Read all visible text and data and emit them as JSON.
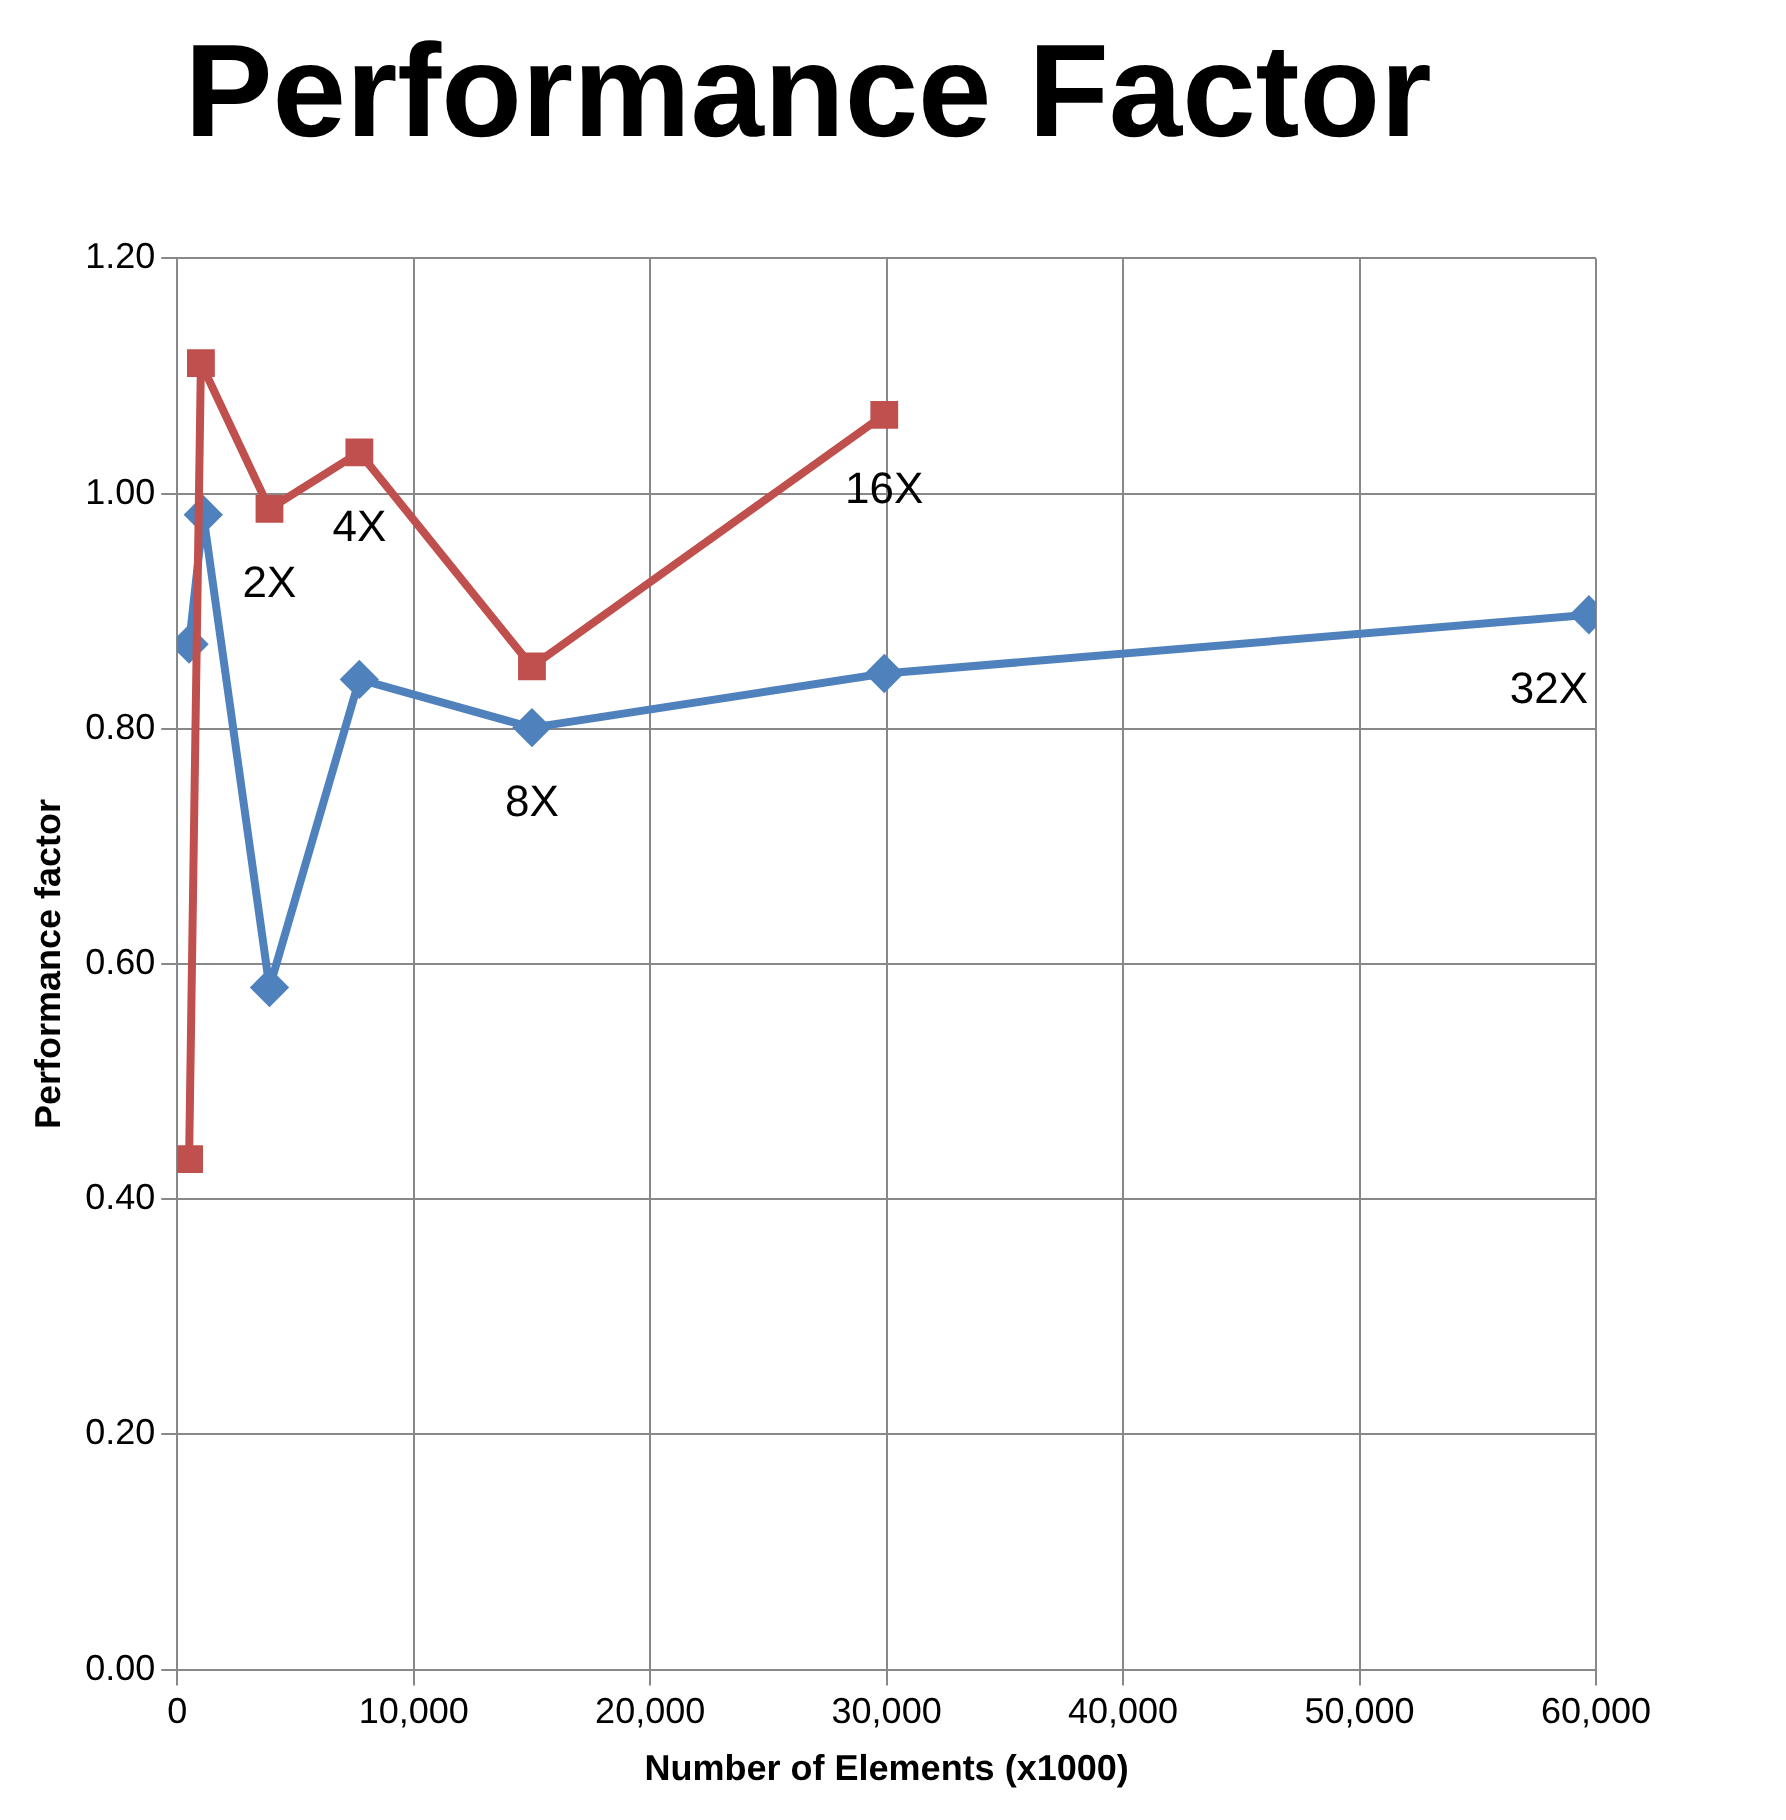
{
  "chart_data": {
    "type": "line",
    "title": "Performance Factor",
    "xlabel": "Number of Elements (x1000)",
    "ylabel": "Performance factor",
    "series": [
      {
        "color": "#c0504d",
        "marker": "square",
        "x": [
          500,
          1000,
          3900,
          7700,
          15000,
          29900
        ],
        "values": [
          0.434,
          1.111,
          0.987,
          1.035,
          0.853,
          1.067
        ]
      },
      {
        "color": "#4f81bd",
        "marker": "diamond",
        "x": [
          500,
          1100,
          3900,
          7700,
          15000,
          29900,
          59700
        ],
        "values": [
          0.872,
          0.982,
          0.58,
          0.842,
          0.801,
          0.847,
          0.897
        ]
      }
    ],
    "xlim": [
      0,
      60000
    ],
    "ylim": [
      0,
      1.2
    ],
    "xticks": [
      0,
      {
        "value": 10000,
        "label": "10,000"
      },
      {
        "value": 20000,
        "label": "20,000"
      },
      {
        "value": 30000,
        "label": "30,000"
      },
      {
        "value": 40000,
        "label": "40,000"
      },
      {
        "value": 50000,
        "label": "50,000"
      },
      {
        "value": 60000,
        "label": "60,000"
      }
    ],
    "yticks": [
      {
        "value": 0,
        "label": "0.00"
      },
      {
        "value": 0.2,
        "label": "0.20"
      },
      {
        "value": 0.4,
        "label": "0.40"
      },
      {
        "value": 0.6,
        "label": "0.60"
      },
      {
        "value": 0.8,
        "label": "0.80"
      },
      {
        "value": 1,
        "label": "1.00"
      },
      {
        "value": 1.2,
        "label": "1.20"
      }
    ],
    "grid": true,
    "line_style": "solid",
    "annotations": [
      {
        "text": "2X",
        "x": 3900,
        "y": 0.987
      },
      {
        "text": "4X",
        "x": 7700,
        "y": 1.035
      },
      {
        "text": "8X",
        "x": 15000,
        "y": 0.801
      },
      {
        "text": "16X",
        "x": 29900,
        "y": 1.067
      },
      {
        "text": "32X",
        "x": 59700,
        "y": 0.897
      }
    ]
  }
}
